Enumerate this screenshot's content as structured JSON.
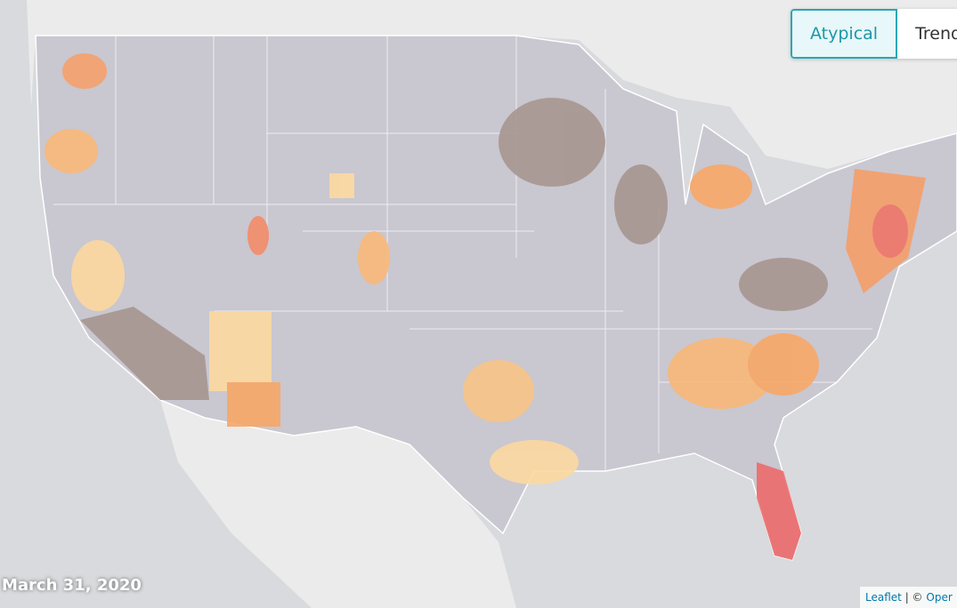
{
  "toggle": {
    "options": [
      "Atypical",
      "Trend"
    ],
    "selected": "Atypical"
  },
  "date_label": "March 31, 2020",
  "attribution": {
    "link": "Leaflet",
    "separator": "| ©",
    "source": "Oper"
  }
}
